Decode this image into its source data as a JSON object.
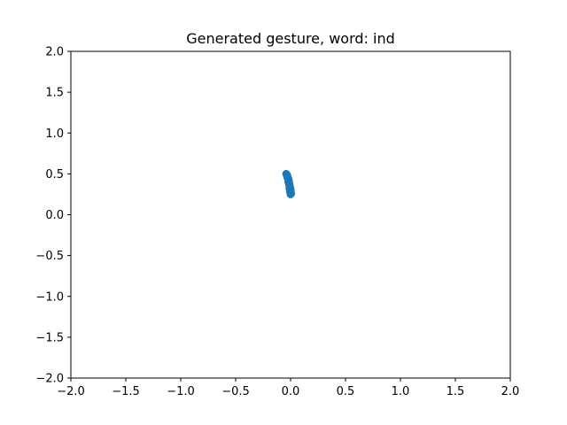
{
  "chart_data": {
    "type": "scatter",
    "title": "Generated gesture, word: ind",
    "xlabel": "",
    "ylabel": "",
    "xlim": [
      -2.0,
      2.0
    ],
    "ylim": [
      -2.0,
      2.0
    ],
    "xticks": [
      -2.0,
      -1.5,
      -1.0,
      -0.5,
      0.0,
      0.5,
      1.0,
      1.5,
      2.0
    ],
    "xtick_labels": [
      "−2.0",
      "−1.5",
      "−1.0",
      "−0.5",
      "0.0",
      "0.5",
      "1.0",
      "1.5",
      "2.0"
    ],
    "yticks": [
      -2.0,
      -1.5,
      -1.0,
      -0.5,
      0.0,
      0.5,
      1.0,
      1.5,
      2.0
    ],
    "ytick_labels": [
      "−2.0",
      "−1.5",
      "−1.0",
      "−0.5",
      "0.0",
      "0.5",
      "1.0",
      "1.5",
      "2.0"
    ],
    "grid": false,
    "marker_color": "#1f77b4",
    "series": [
      {
        "x": [
          -0.04,
          -0.035,
          -0.03,
          -0.03,
          -0.025,
          -0.02,
          -0.02,
          -0.015,
          -0.02,
          -0.015,
          -0.01,
          -0.01,
          -0.005,
          -0.01,
          0.0,
          0.0,
          -0.005,
          0.005,
          0.0
        ],
        "y": [
          0.5,
          0.49,
          0.48,
          0.46,
          0.45,
          0.44,
          0.42,
          0.41,
          0.4,
          0.38,
          0.37,
          0.35,
          0.34,
          0.32,
          0.31,
          0.29,
          0.28,
          0.26,
          0.25
        ]
      }
    ]
  }
}
